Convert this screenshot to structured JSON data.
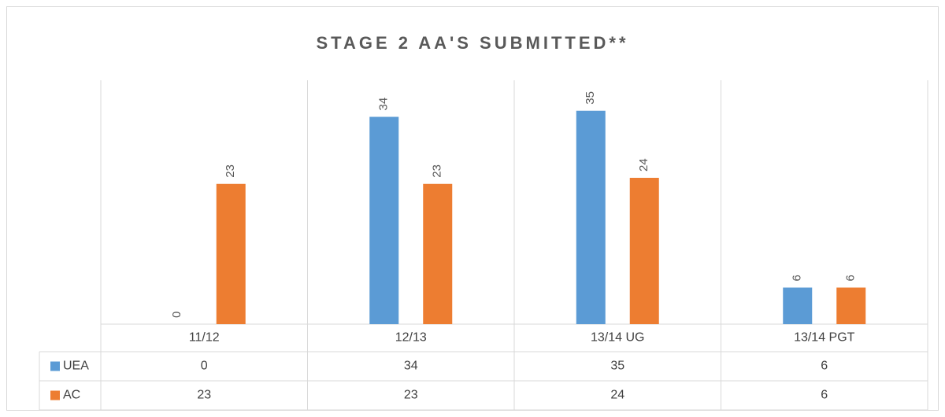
{
  "chart_data": {
    "type": "bar",
    "title": "STAGE 2 AA'S SUBMITTED**",
    "categories": [
      "11/12",
      "12/13",
      "13/14 UG",
      "13/14 PGT"
    ],
    "series": [
      {
        "name": "UEA",
        "color": "#5b9bd5",
        "values": [
          0,
          34,
          35,
          6
        ]
      },
      {
        "name": "AC",
        "color": "#ed7d31",
        "values": [
          23,
          23,
          24,
          6
        ]
      }
    ],
    "ylim": [
      0,
      40
    ]
  }
}
